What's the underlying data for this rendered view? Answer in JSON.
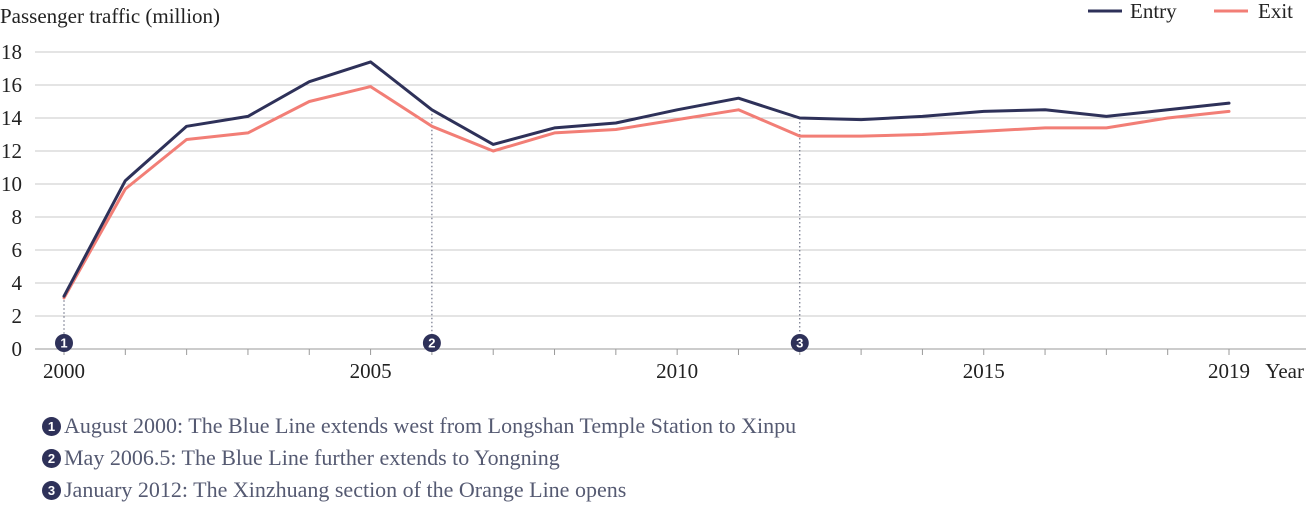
{
  "chart_data": {
    "type": "line",
    "ylabel": "Passenger traffic (million)",
    "xlabel": "Year",
    "ylim": [
      0,
      18
    ],
    "yticks": [
      0,
      2,
      4,
      6,
      8,
      10,
      12,
      14,
      16,
      18
    ],
    "xticks": [
      2000,
      2005,
      2010,
      2015,
      2019
    ],
    "x_tick_labels": [
      "2000",
      "2005",
      "2010",
      "2015",
      "2019"
    ],
    "x": [
      2000,
      2001,
      2002,
      2003,
      2004,
      2005,
      2006,
      2007,
      2008,
      2009,
      2010,
      2011,
      2012,
      2013,
      2014,
      2015,
      2016,
      2017,
      2018,
      2019
    ],
    "series": [
      {
        "name": "Entry",
        "color": "#2e3159",
        "values": [
          3.2,
          10.2,
          13.5,
          14.1,
          16.2,
          17.4,
          14.5,
          12.4,
          13.4,
          13.7,
          14.5,
          15.2,
          14.0,
          13.9,
          14.1,
          14.4,
          14.5,
          14.1,
          14.5,
          14.9
        ]
      },
      {
        "name": "Exit",
        "color": "#f27e76",
        "values": [
          3.1,
          9.7,
          12.7,
          13.1,
          15.0,
          15.9,
          13.5,
          12.0,
          13.1,
          13.3,
          13.9,
          14.5,
          12.9,
          12.9,
          13.0,
          13.2,
          13.4,
          13.4,
          14.0,
          14.4
        ]
      }
    ],
    "legend_position": "top-right",
    "grid": "horizontal",
    "annotations": [
      {
        "marker": "1",
        "x": 2000,
        "text": "August 2000: The Blue Line extends west from Longshan Temple Station to Xinpu"
      },
      {
        "marker": "2",
        "x": 2006,
        "text": "May 2006.5: The Blue Line further extends to Yongning"
      },
      {
        "marker": "3",
        "x": 2012,
        "text": "January 2012: The Xinzhuang section of the Orange Line opens"
      }
    ]
  }
}
